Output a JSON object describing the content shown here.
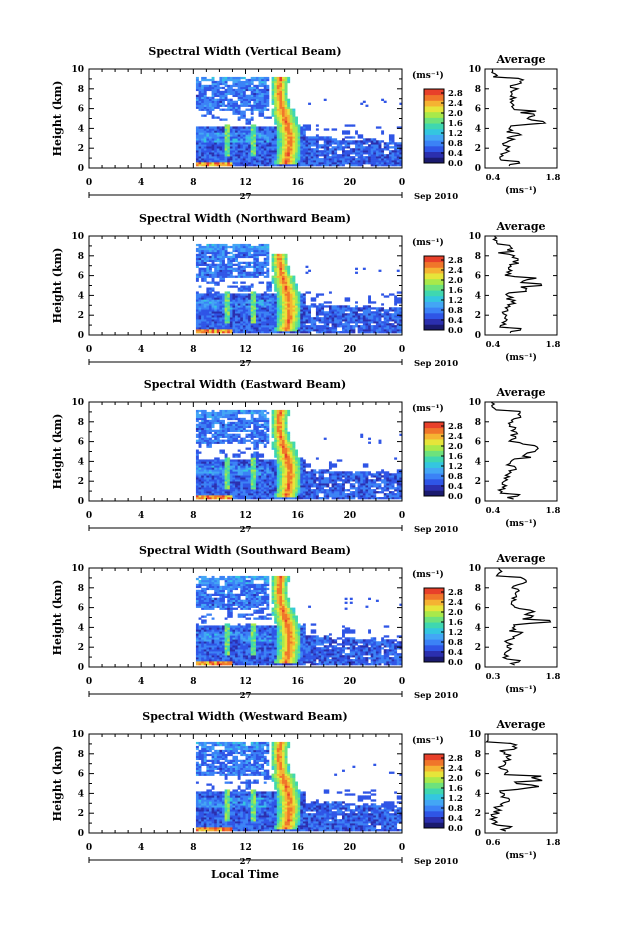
{
  "colors": {
    "scale": [
      "#1a1a6e",
      "#2b2fae",
      "#2f55e6",
      "#3b82f6",
      "#43a6f5",
      "#34c6e0",
      "#3fd7b0",
      "#6de27c",
      "#a9e94a",
      "#e6e53a",
      "#f5b332",
      "#f0762a",
      "#e8402a"
    ],
    "line": "#000000",
    "background": "#ffffff"
  },
  "colorbar": {
    "unit_label": "(ms⁻¹)",
    "ticks": [
      "2.8",
      "2.4",
      "2.0",
      "1.6",
      "1.2",
      "0.8",
      "0.4",
      "0.0"
    ]
  },
  "shared": {
    "ylabel": "Height (km)",
    "yticks": [
      "0",
      "2",
      "4",
      "6",
      "8",
      "10"
    ],
    "xticks": [
      "0",
      "4",
      "8",
      "12",
      "16",
      "20",
      "0"
    ],
    "date_day": "27",
    "date_label": "Sep 2010",
    "avg_title": "Average",
    "avg_unit": "(ms⁻¹)",
    "xlabel": "Local Time"
  },
  "chart_data": [
    {
      "type": "heatmap",
      "title": "Spectral Width (Vertical Beam)",
      "xlabel": "Local Time",
      "ylabel": "Height (km)",
      "xlim": [
        0,
        24
      ],
      "ylim": [
        0,
        10
      ],
      "clim": [
        0.0,
        3.0
      ],
      "data_start_hour": 8.3,
      "profile": {
        "title": "Average",
        "xlim": [
          0.4,
          1.8
        ],
        "ylim": [
          0,
          10
        ],
        "xticks": [
          "0.4",
          "1.8"
        ],
        "xlabel": "(ms⁻¹)"
      }
    },
    {
      "type": "heatmap",
      "title": "Spectral Width (Northward Beam)",
      "xlabel": "Local Time",
      "ylabel": "Height (km)",
      "xlim": [
        0,
        24
      ],
      "ylim": [
        0,
        10
      ],
      "clim": [
        0.0,
        3.0
      ],
      "data_start_hour": 8.3,
      "profile": {
        "title": "Average",
        "xlim": [
          0.4,
          1.8
        ],
        "ylim": [
          0,
          10
        ],
        "xticks": [
          "0.4",
          "1.8"
        ],
        "xlabel": "(ms⁻¹)"
      }
    },
    {
      "type": "heatmap",
      "title": "Spectral Width (Eastward Beam)",
      "xlabel": "Local Time",
      "ylabel": "Height (km)",
      "xlim": [
        0,
        24
      ],
      "ylim": [
        0,
        10
      ],
      "clim": [
        0.0,
        3.0
      ],
      "data_start_hour": 8.3,
      "profile": {
        "title": "Average",
        "xlim": [
          0.4,
          1.8
        ],
        "ylim": [
          0,
          10
        ],
        "xticks": [
          "0.4",
          "1.8"
        ],
        "xlabel": "(ms⁻¹)"
      }
    },
    {
      "type": "heatmap",
      "title": "Spectral Width (Southward Beam)",
      "xlabel": "Local Time",
      "ylabel": "Height (km)",
      "xlim": [
        0,
        24
      ],
      "ylim": [
        0,
        10
      ],
      "clim": [
        0.0,
        3.0
      ],
      "data_start_hour": 8.3,
      "profile": {
        "title": "Average",
        "xlim": [
          0.3,
          1.8
        ],
        "ylim": [
          0,
          10
        ],
        "xticks": [
          "0.3",
          "1.8"
        ],
        "xlabel": "(ms⁻¹)"
      }
    },
    {
      "type": "heatmap",
      "title": "Spectral Width (Westward Beam)",
      "xlabel": "Local Time",
      "ylabel": "Height (km)",
      "xlim": [
        0,
        24
      ],
      "ylim": [
        0,
        10
      ],
      "clim": [
        0.0,
        3.0
      ],
      "data_start_hour": 8.3,
      "profile": {
        "title": "Average",
        "xlim": [
          0.6,
          1.8
        ],
        "ylim": [
          0,
          10
        ],
        "xticks": [
          "0.6",
          "1.8"
        ],
        "xlabel": "(ms⁻¹)"
      }
    }
  ]
}
